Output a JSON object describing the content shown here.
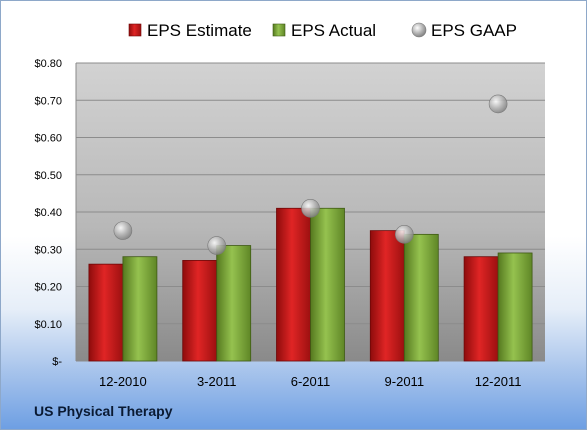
{
  "chart_data": {
    "type": "bar",
    "categories": [
      "12-2010",
      "3-2011",
      "6-2011",
      "9-2011",
      "12-2011"
    ],
    "series": [
      {
        "name": "EPS Estimate",
        "kind": "bar",
        "color": "#d01a1a",
        "values": [
          0.26,
          0.27,
          0.41,
          0.35,
          0.28
        ]
      },
      {
        "name": "EPS Actual",
        "kind": "bar",
        "color": "#7aa83c",
        "values": [
          0.28,
          0.31,
          0.41,
          0.34,
          0.29
        ]
      },
      {
        "name": "EPS GAAP",
        "kind": "marker",
        "color": "#b8b8b8",
        "values": [
          0.35,
          0.31,
          0.41,
          0.34,
          0.69
        ]
      }
    ],
    "yticks": [
      {
        "value": 0.0,
        "label": "$-"
      },
      {
        "value": 0.1,
        "label": "$0.10"
      },
      {
        "value": 0.2,
        "label": "$0.20"
      },
      {
        "value": 0.3,
        "label": "$0.30"
      },
      {
        "value": 0.4,
        "label": "$0.40"
      },
      {
        "value": 0.5,
        "label": "$0.50"
      },
      {
        "value": 0.6,
        "label": "$0.60"
      },
      {
        "value": 0.7,
        "label": "$0.70"
      },
      {
        "value": 0.8,
        "label": "$0.80"
      }
    ],
    "ylim": [
      0,
      0.8
    ],
    "grid": true,
    "legend_position": "top"
  },
  "footer": {
    "company": "US Physical Therapy"
  }
}
